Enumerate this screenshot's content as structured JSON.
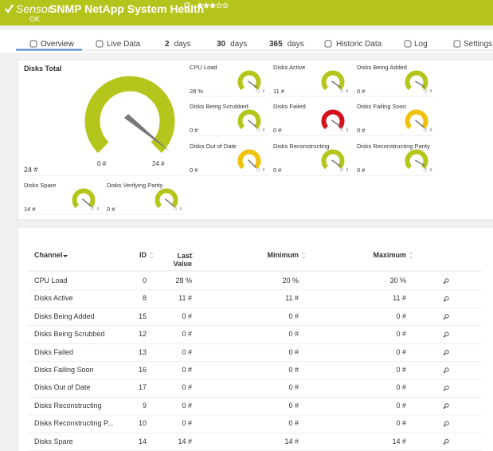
{
  "header": {
    "prefix": "Sensor",
    "title": "SNMP NetApp System Health",
    "status": "OK"
  },
  "tabs": [
    {
      "label": "Overview"
    },
    {
      "label": "Live Data"
    },
    {
      "count": "2",
      "label": "days"
    },
    {
      "count": "30",
      "label": "days"
    },
    {
      "count": "365",
      "label": "days"
    },
    {
      "label": "Historic Data"
    },
    {
      "label": "Log"
    },
    {
      "label": "Settings"
    }
  ],
  "gauges": {
    "main": {
      "label": "Disks Total",
      "value": "24 #",
      "min": "0 #",
      "max": "24 #",
      "color": "#b4c51b"
    },
    "small": [
      {
        "label": "CPU Load",
        "value": "28 %",
        "color": "#b4c51b"
      },
      {
        "label": "Disks Active",
        "value": "11 #",
        "color": "#b4c51b"
      },
      {
        "label": "Disks Being Added",
        "value": "0 #",
        "color": "#b4c51b"
      },
      {
        "label": "Disks Being Scrubbed",
        "value": "0 #",
        "color": "#b4c51b"
      },
      {
        "label": "Disks Failed",
        "value": "0 #",
        "color": "#d4111c"
      },
      {
        "label": "Disks Failing Soon",
        "value": "0 #",
        "color": "#f0c20a"
      },
      {
        "label": "Disks Out of Date",
        "value": "0 #",
        "color": "#f0c20a"
      },
      {
        "label": "Disks Reconstructing",
        "value": "0 #",
        "color": "#b4c51b"
      },
      {
        "label": "Disks Reconstructing Parity",
        "value": "0 #",
        "color": "#b4c51b"
      },
      {
        "label": "Disks Spare",
        "value": "14 #",
        "color": "#b4c51b"
      },
      {
        "label": "Disks Verifying Parity",
        "value": "0 #",
        "color": "#b4c51b"
      }
    ]
  },
  "table": {
    "columns": [
      "Channel",
      "ID",
      "Last Value",
      "Minimum",
      "Maximum"
    ],
    "rows": [
      [
        "CPU Load",
        "0",
        "28 %",
        "20 %",
        "30 %"
      ],
      [
        "Disks Active",
        "8",
        "11 #",
        "11 #",
        "11 #"
      ],
      [
        "Disks Being Added",
        "15",
        "0 #",
        "0 #",
        "0 #"
      ],
      [
        "Disks Being Scrubbed",
        "12",
        "0 #",
        "0 #",
        "0 #"
      ],
      [
        "Disks Failed",
        "13",
        "0 #",
        "0 #",
        "0 #"
      ],
      [
        "Disks Failing Soon",
        "16",
        "0 #",
        "0 #",
        "0 #"
      ],
      [
        "Disks Out of Date",
        "17",
        "0 #",
        "0 #",
        "0 #"
      ],
      [
        "Disks Reconstructing",
        "9",
        "0 #",
        "0 #",
        "0 #"
      ],
      [
        "Disks Reconstructing P...",
        "10",
        "0 #",
        "0 #",
        "0 #"
      ],
      [
        "Disks Spare",
        "14",
        "14 #",
        "14 #",
        "14 #"
      ]
    ]
  }
}
